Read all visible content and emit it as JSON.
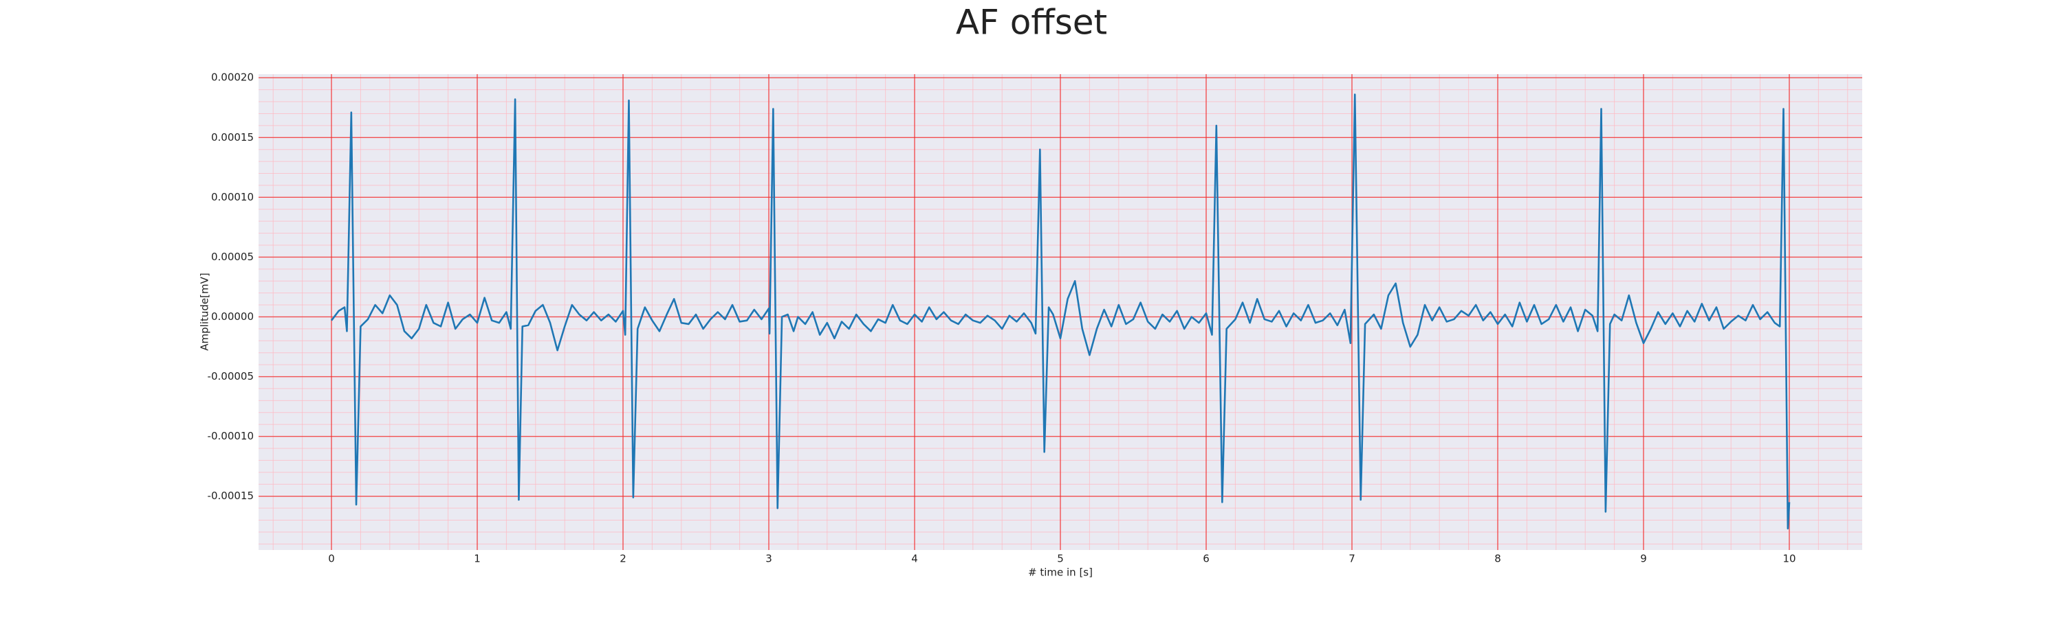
{
  "chart_data": {
    "type": "line",
    "title": "AF offset",
    "xlabel": "# time in [s]",
    "ylabel": "Amplitude[mV]",
    "x": [
      0,
      0.05,
      0.09,
      0.106,
      0.136,
      0.17,
      0.2,
      0.25,
      0.3,
      0.35,
      0.4,
      0.45,
      0.5,
      0.55,
      0.6,
      0.65,
      0.7,
      0.75,
      0.8,
      0.85,
      0.9,
      0.95,
      1.0,
      1.05,
      1.1,
      1.15,
      1.2,
      1.23,
      1.26,
      1.285,
      1.31,
      1.35,
      1.4,
      1.45,
      1.5,
      1.55,
      1.6,
      1.65,
      1.7,
      1.75,
      1.8,
      1.85,
      1.9,
      1.95,
      2.0,
      2.015,
      2.04,
      2.07,
      2.1,
      2.15,
      2.2,
      2.25,
      2.3,
      2.35,
      2.4,
      2.45,
      2.5,
      2.55,
      2.6,
      2.65,
      2.7,
      2.75,
      2.8,
      2.85,
      2.9,
      2.95,
      3.0,
      3.005,
      3.03,
      3.06,
      3.09,
      3.13,
      3.17,
      3.2,
      3.25,
      3.3,
      3.35,
      3.4,
      3.45,
      3.5,
      3.55,
      3.6,
      3.65,
      3.7,
      3.75,
      3.8,
      3.85,
      3.9,
      3.95,
      4.0,
      4.05,
      4.1,
      4.15,
      4.2,
      4.25,
      4.3,
      4.35,
      4.4,
      4.45,
      4.5,
      4.55,
      4.6,
      4.65,
      4.7,
      4.75,
      4.8,
      4.83,
      4.86,
      4.89,
      4.92,
      4.95,
      5.0,
      5.05,
      5.1,
      5.15,
      5.2,
      5.25,
      5.3,
      5.35,
      5.4,
      5.45,
      5.5,
      5.55,
      5.6,
      5.65,
      5.7,
      5.75,
      5.8,
      5.85,
      5.9,
      5.95,
      6.0,
      6.04,
      6.07,
      6.11,
      6.14,
      6.2,
      6.25,
      6.3,
      6.35,
      6.4,
      6.45,
      6.5,
      6.55,
      6.6,
      6.65,
      6.7,
      6.75,
      6.8,
      6.85,
      6.9,
      6.95,
      6.99,
      7.02,
      7.06,
      7.09,
      7.15,
      7.2,
      7.25,
      7.3,
      7.35,
      7.4,
      7.45,
      7.5,
      7.55,
      7.6,
      7.65,
      7.7,
      7.75,
      7.8,
      7.85,
      7.9,
      7.95,
      8.0,
      8.05,
      8.1,
      8.15,
      8.2,
      8.25,
      8.3,
      8.35,
      8.4,
      8.45,
      8.5,
      8.55,
      8.6,
      8.65,
      8.685,
      8.71,
      8.74,
      8.77,
      8.8,
      8.85,
      8.9,
      8.95,
      9.0,
      9.05,
      9.1,
      9.15,
      9.2,
      9.25,
      9.3,
      9.35,
      9.4,
      9.45,
      9.5,
      9.55,
      9.6,
      9.65,
      9.7,
      9.75,
      9.8,
      9.85,
      9.9,
      9.935,
      9.96,
      9.99,
      10.0
    ],
    "values": [
      -3e-06,
      5e-06,
      8e-06,
      -1.2e-05,
      0.000171,
      -0.000157,
      -8e-06,
      -2e-06,
      1e-05,
      3e-06,
      1.8e-05,
      1e-05,
      -1.2e-05,
      -1.8e-05,
      -1e-05,
      1e-05,
      -5e-06,
      -8e-06,
      1.2e-05,
      -1e-05,
      -2e-06,
      2e-06,
      -5e-06,
      1.6e-05,
      -3e-06,
      -5e-06,
      4e-06,
      -1e-05,
      0.000182,
      -0.000153,
      -8e-06,
      -7e-06,
      5e-06,
      1e-05,
      -5e-06,
      -2.8e-05,
      -8e-06,
      1e-05,
      2e-06,
      -3e-06,
      4e-06,
      -3e-06,
      2e-06,
      -4e-06,
      5e-06,
      -1.5e-05,
      0.000181,
      -0.000151,
      -1e-05,
      8e-06,
      -3e-06,
      -1.2e-05,
      2e-06,
      1.5e-05,
      -5e-06,
      -6e-06,
      2e-06,
      -1e-05,
      -2e-06,
      4e-06,
      -2e-06,
      1e-05,
      -4e-06,
      -3e-06,
      6e-06,
      -2e-06,
      7e-06,
      -1.4e-05,
      0.000174,
      -0.00016,
      0,
      2e-06,
      -1.2e-05,
      0,
      -6e-06,
      4e-06,
      -1.5e-05,
      -5e-06,
      -1.8e-05,
      -4e-06,
      -1e-05,
      2e-06,
      -6e-06,
      -1.2e-05,
      -2e-06,
      -5e-06,
      1e-05,
      -3e-06,
      -6e-06,
      2e-06,
      -4e-06,
      8e-06,
      -2e-06,
      4e-06,
      -3e-06,
      -6e-06,
      2e-06,
      -3e-06,
      -5e-06,
      1e-06,
      -3e-06,
      -1e-05,
      1e-06,
      -4e-06,
      3e-06,
      -5e-06,
      -1.4e-05,
      0.00014,
      -0.000113,
      8e-06,
      2e-06,
      -1.8e-05,
      1.5e-05,
      3e-05,
      -1e-05,
      -3.2e-05,
      -1e-05,
      6e-06,
      -8e-06,
      1e-05,
      -6e-06,
      -2e-06,
      1.2e-05,
      -4e-06,
      -1e-05,
      2e-06,
      -4e-06,
      5e-06,
      -1e-05,
      0,
      -5e-06,
      3e-06,
      -1.5e-05,
      0.00016,
      -0.000155,
      -1e-05,
      -2e-06,
      1.2e-05,
      -5e-06,
      1.5e-05,
      -2e-06,
      -4e-06,
      5e-06,
      -8e-06,
      3e-06,
      -3e-06,
      1e-05,
      -5e-06,
      -3e-06,
      3e-06,
      -7e-06,
      6e-06,
      -2.2e-05,
      0.000186,
      -0.000153,
      -6e-06,
      2e-06,
      -1e-05,
      1.8e-05,
      2.8e-05,
      -5e-06,
      -2.5e-05,
      -1.5e-05,
      1e-05,
      -3e-06,
      8e-06,
      -4e-06,
      -2e-06,
      5e-06,
      1e-06,
      1e-05,
      -3e-06,
      4e-06,
      -6e-06,
      2e-06,
      -8e-06,
      1.2e-05,
      -4e-06,
      1e-05,
      -6e-06,
      -2e-06,
      1e-05,
      -4e-06,
      8e-06,
      -1.2e-05,
      6e-06,
      1e-06,
      -1.2e-05,
      0.000174,
      -0.000163,
      -6e-06,
      2e-06,
      -3e-06,
      1.8e-05,
      -5e-06,
      -2.2e-05,
      -1e-05,
      4e-06,
      -6e-06,
      3e-06,
      -8e-06,
      5e-06,
      -4e-06,
      1.1e-05,
      -3e-06,
      8e-06,
      -1e-05,
      -4e-06,
      1e-06,
      -3e-06,
      1e-05,
      -2e-06,
      4e-06,
      -5e-06,
      -8e-06,
      0.000174,
      -0.000177,
      -0.000155
    ],
    "color": "#1f77b4",
    "xlim": [
      -0.5,
      10.5
    ],
    "ylim": [
      -0.000195,
      0.000203
    ],
    "xticks": [
      0,
      1,
      2,
      3,
      4,
      5,
      6,
      7,
      8,
      9,
      10
    ],
    "yticks": [
      {
        "value": -0.00015,
        "label": "-0.00015"
      },
      {
        "value": -0.0001,
        "label": "-0.00010"
      },
      {
        "value": -5e-05,
        "label": "-0.00005"
      },
      {
        "value": 0,
        "label": "0.00000"
      },
      {
        "value": 5e-05,
        "label": "0.00005"
      },
      {
        "value": 0.0001,
        "label": "0.00010"
      },
      {
        "value": 0.00015,
        "label": "0.00015"
      },
      {
        "value": 0.0002,
        "label": "0.00020"
      }
    ],
    "grid": true,
    "minor_grid": true
  }
}
